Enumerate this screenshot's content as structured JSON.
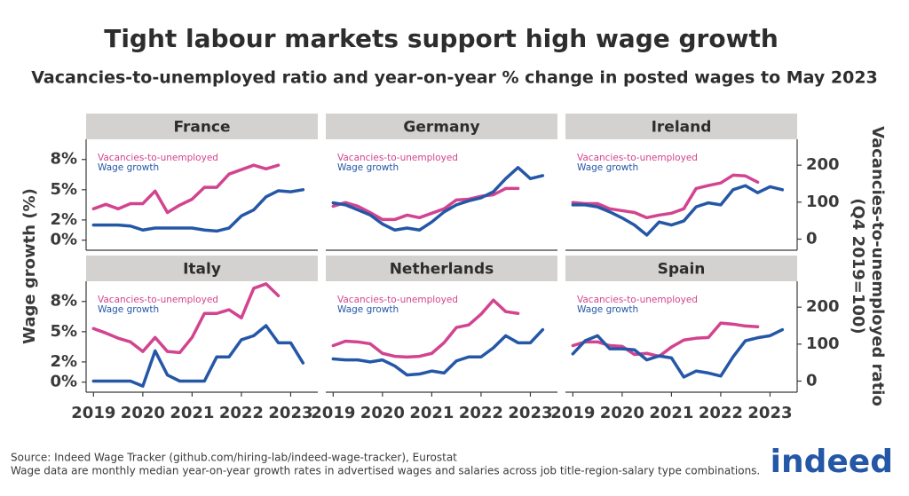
{
  "title": "Tight labour markets support high wage growth",
  "subtitle": "Vacancies-to-unemployed ratio and year-on-year % change in posted wages to May 2023",
  "y_label": "Wage growth (%)",
  "y2_label": [
    "Vacancies-to-unemployed ratio",
    "(Q4 2019=100)"
  ],
  "source": "Source: Indeed Wage Tracker (github.com/hiring-lab/indeed-wage-tracker), Eurostat",
  "note": "Wage data are monthly median year-on-year growth rates in advertised wages and salaries across job title-region-salary type combinations.",
  "logo": "indeed",
  "chart_data": [
    {
      "type": "line",
      "title": "France",
      "x": [
        2019,
        2019.25,
        2019.5,
        2019.75,
        2020,
        2020.25,
        2020.5,
        2020.75,
        2021,
        2021.25,
        2021.5,
        2021.75,
        2022,
        2022.25,
        2022.5,
        2022.75,
        2023,
        2023.25
      ],
      "series": [
        {
          "name": "Vacancies-to-unemployed",
          "color": "#d2448f",
          "axis": "y2",
          "values": [
            82,
            94,
            82,
            96,
            96,
            130,
            72,
            92,
            108,
            140,
            140,
            176,
            188,
            200,
            190,
            200,
            null,
            null
          ]
        },
        {
          "name": "Wage growth",
          "color": "#2557a7",
          "values": [
            1.5,
            1.5,
            1.5,
            1.4,
            1.0,
            1.2,
            1.2,
            1.2,
            1.2,
            1.0,
            0.9,
            1.2,
            2.4,
            3.0,
            4.3,
            4.9,
            4.8,
            5.0
          ]
        }
      ],
      "xlim": [
        2018.85,
        2023.55
      ],
      "ylim": [
        -1,
        10
      ],
      "y2lim": [
        -30,
        270
      ],
      "yticks": [
        {
          "value": 0,
          "label": "0%"
        },
        {
          "value": 2,
          "label": "2%"
        },
        {
          "value": 5,
          "label": "5%"
        },
        {
          "value": 8,
          "label": "8%"
        }
      ]
    },
    {
      "type": "line",
      "title": "Germany",
      "x": [
        2019,
        2019.25,
        2019.5,
        2019.75,
        2020,
        2020.25,
        2020.5,
        2020.75,
        2021,
        2021.25,
        2021.5,
        2021.75,
        2022,
        2022.25,
        2022.5,
        2022.75,
        2023,
        2023.25
      ],
      "series": [
        {
          "name": "Vacancies-to-unemployed",
          "color": "#d2448f",
          "axis": "y2",
          "values": [
            89,
            99,
            89,
            72,
            53,
            53,
            65,
            58,
            70,
            82,
            106,
            108,
            116,
            120,
            137,
            137,
            null,
            null
          ]
        },
        {
          "name": "Wage growth",
          "color": "#2557a7",
          "values": [
            3.7,
            3.5,
            3.0,
            2.5,
            1.6,
            1.0,
            1.2,
            1.0,
            1.8,
            2.8,
            3.5,
            3.9,
            4.2,
            4.8,
            6.1,
            7.2,
            6.1,
            6.4
          ]
        }
      ],
      "xlim": [
        2018.85,
        2023.55
      ],
      "ylim": [
        -1,
        10
      ],
      "y2lim": [
        -30,
        270
      ]
    },
    {
      "type": "line",
      "title": "Ireland",
      "x": [
        2019,
        2019.25,
        2019.5,
        2019.75,
        2020,
        2020.25,
        2020.5,
        2020.75,
        2021,
        2021.25,
        2021.5,
        2021.75,
        2022,
        2022.25,
        2022.5,
        2022.75,
        2023,
        2023.25
      ],
      "series": [
        {
          "name": "Vacancies-to-unemployed",
          "color": "#d2448f",
          "axis": "y2",
          "values": [
            99,
            96,
            96,
            82,
            77,
            72,
            58,
            65,
            70,
            82,
            137,
            145,
            152,
            173,
            171,
            154,
            null,
            null
          ]
        },
        {
          "name": "Wage growth",
          "color": "#2557a7",
          "values": [
            3.5,
            3.5,
            3.3,
            2.8,
            2.2,
            1.5,
            0.5,
            1.8,
            1.5,
            1.9,
            3.3,
            3.7,
            3.5,
            5.0,
            5.4,
            4.7,
            5.3,
            5.0
          ]
        }
      ],
      "xlim": [
        2018.85,
        2023.55
      ],
      "ylim": [
        -1,
        10
      ],
      "y2lim": [
        -30,
        270
      ],
      "y2ticks": [
        0,
        100,
        200
      ]
    },
    {
      "type": "line",
      "title": "Italy",
      "x": [
        2019,
        2019.25,
        2019.5,
        2019.75,
        2020,
        2020.25,
        2020.5,
        2020.75,
        2021,
        2021.25,
        2021.5,
        2021.75,
        2022,
        2022.25,
        2022.5,
        2022.75,
        2023,
        2023.25
      ],
      "series": [
        {
          "name": "Vacancies-to-unemployed",
          "color": "#d2448f",
          "axis": "y2",
          "values": [
            142,
            130,
            116,
            106,
            80,
            118,
            80,
            77,
            118,
            183,
            183,
            193,
            171,
            251,
            263,
            231,
            null,
            null
          ]
        },
        {
          "name": "Wage growth",
          "color": "#2557a7",
          "values": [
            0.1,
            0.1,
            0.1,
            0.1,
            -0.4,
            3.1,
            0.7,
            0.1,
            0.1,
            0.1,
            2.5,
            2.5,
            4.2,
            4.6,
            5.6,
            3.9,
            3.9,
            1.9
          ]
        }
      ],
      "xlim": [
        2018.85,
        2023.55
      ],
      "ylim": [
        -1,
        10
      ],
      "y2lim": [
        -30,
        270
      ],
      "yticks": [
        {
          "value": 0,
          "label": "0%"
        },
        {
          "value": 2,
          "label": "2%"
        },
        {
          "value": 5,
          "label": "5%"
        },
        {
          "value": 8,
          "label": "8%"
        }
      ],
      "xticks": [
        2019,
        2020,
        2021,
        2022,
        2023
      ]
    },
    {
      "type": "line",
      "title": "Netherlands",
      "x": [
        2019,
        2019.25,
        2019.5,
        2019.75,
        2020,
        2020.25,
        2020.5,
        2020.75,
        2021,
        2021.25,
        2021.5,
        2021.75,
        2022,
        2022.25,
        2022.5,
        2022.75,
        2023,
        2023.25
      ],
      "series": [
        {
          "name": "Vacancies-to-unemployed",
          "color": "#d2448f",
          "axis": "y2",
          "values": [
            96,
            108,
            106,
            101,
            75,
            67,
            65,
            67,
            75,
            104,
            145,
            152,
            181,
            219,
            188,
            183,
            null,
            null
          ]
        },
        {
          "name": "Wage growth",
          "color": "#2557a7",
          "values": [
            2.3,
            2.2,
            2.2,
            2.0,
            2.2,
            1.6,
            0.7,
            0.8,
            1.1,
            0.9,
            2.1,
            2.5,
            2.5,
            3.4,
            4.6,
            3.9,
            3.9,
            5.2
          ]
        }
      ],
      "xlim": [
        2018.85,
        2023.55
      ],
      "ylim": [
        -1,
        10
      ],
      "y2lim": [
        -30,
        270
      ],
      "xticks": [
        2019,
        2020,
        2021,
        2022,
        2023
      ]
    },
    {
      "type": "line",
      "title": "Spain",
      "x": [
        2019,
        2019.25,
        2019.5,
        2019.75,
        2020,
        2020.25,
        2020.5,
        2020.75,
        2021,
        2021.25,
        2021.5,
        2021.75,
        2022,
        2022.25,
        2022.5,
        2022.75,
        2023,
        2023.25
      ],
      "series": [
        {
          "name": "Vacancies-to-unemployed",
          "color": "#d2448f",
          "axis": "y2",
          "values": [
            96,
            106,
            106,
            96,
            94,
            72,
            75,
            67,
            92,
            111,
            116,
            118,
            157,
            154,
            149,
            147,
            null,
            null
          ]
        },
        {
          "name": "Wage growth",
          "color": "#2557a7",
          "values": [
            2.8,
            4.1,
            4.6,
            3.3,
            3.3,
            3.2,
            2.2,
            2.6,
            2.4,
            0.5,
            1.1,
            0.9,
            0.6,
            2.5,
            4.1,
            4.4,
            4.6,
            5.2
          ]
        }
      ],
      "xlim": [
        2018.85,
        2023.55
      ],
      "ylim": [
        -1,
        10
      ],
      "y2lim": [
        -30,
        270
      ],
      "y2ticks": [
        0,
        100,
        200
      ],
      "xticks": [
        2019,
        2020,
        2021,
        2022,
        2023
      ]
    }
  ]
}
